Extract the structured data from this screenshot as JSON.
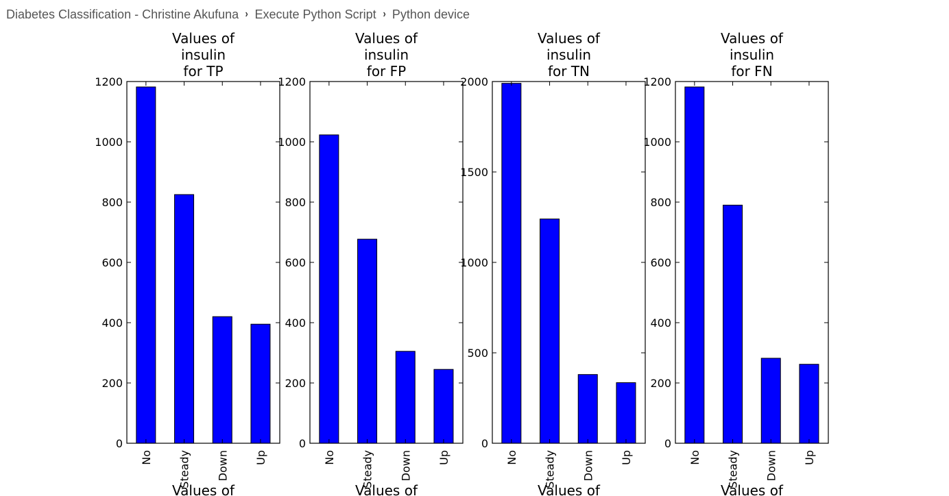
{
  "breadcrumb": {
    "items": [
      "Diabetes Classification - Christine Akufuna",
      "Execute Python Script",
      "Python device"
    ],
    "separator": "›"
  },
  "colors": {
    "bar": "#0000ff",
    "axis": "#000000"
  },
  "chart_data": [
    {
      "type": "bar",
      "title": [
        "Values of",
        "insulin",
        "for TP"
      ],
      "categories": [
        "No",
        "Steady",
        "Down",
        "Up"
      ],
      "values": [
        1182,
        825,
        420,
        395
      ],
      "ylim": [
        0,
        1200
      ],
      "yticks": [
        0,
        200,
        400,
        600,
        800,
        1000,
        1200
      ],
      "xlabel": "",
      "ylabel": "",
      "grid": false
    },
    {
      "type": "bar",
      "title": [
        "Values of",
        "insulin",
        "for FP"
      ],
      "categories": [
        "No",
        "Steady",
        "Down",
        "Up"
      ],
      "values": [
        1023,
        677,
        305,
        245
      ],
      "ylim": [
        0,
        1200
      ],
      "yticks": [
        0,
        200,
        400,
        600,
        800,
        1000,
        1200
      ],
      "xlabel": "",
      "ylabel": "",
      "grid": false
    },
    {
      "type": "bar",
      "title": [
        "Values of",
        "insulin",
        "for TN"
      ],
      "categories": [
        "No",
        "Steady",
        "Down",
        "Up"
      ],
      "values": [
        1990,
        1240,
        380,
        335
      ],
      "ylim": [
        0,
        2000
      ],
      "yticks": [
        0,
        500,
        1000,
        1500,
        2000
      ],
      "xlabel": "",
      "ylabel": "",
      "grid": false
    },
    {
      "type": "bar",
      "title": [
        "Values of",
        "insulin",
        "for FN"
      ],
      "categories": [
        "No",
        "Steady",
        "Down",
        "Up"
      ],
      "values": [
        1182,
        790,
        282,
        262
      ],
      "ylim": [
        0,
        1200
      ],
      "yticks": [
        0,
        200,
        400,
        600,
        800,
        1000,
        1200
      ],
      "xlabel": "",
      "ylabel": "",
      "grid": false
    }
  ],
  "cut_off_titles": [
    "Values of",
    "Values of",
    "Values of",
    "Values of"
  ]
}
